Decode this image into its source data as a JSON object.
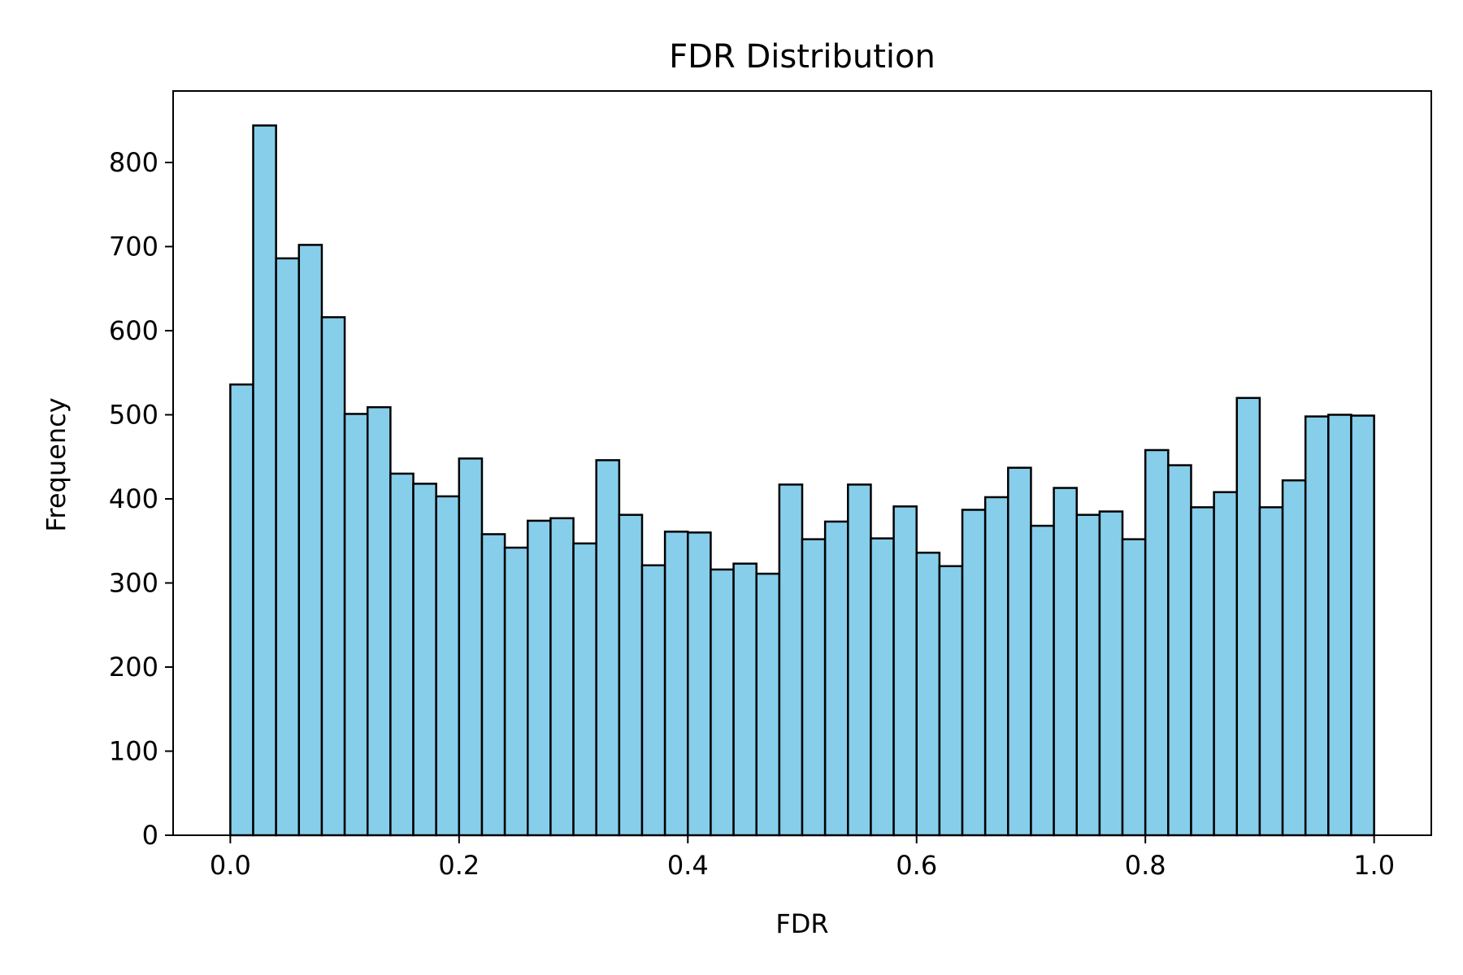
{
  "chart_data": {
    "type": "bar",
    "title": "FDR Distribution",
    "xlabel": "FDR",
    "ylabel": "Frequency",
    "bin_edges_start": 0.0,
    "bin_edges_end": 1.0,
    "xlim": [
      -0.05,
      1.05
    ],
    "ylim": [
      0,
      885
    ],
    "xticks": [
      0.0,
      0.2,
      0.4,
      0.6,
      0.8,
      1.0
    ],
    "xtick_labels": [
      "0.0",
      "0.2",
      "0.4",
      "0.6",
      "0.8",
      "1.0"
    ],
    "yticks": [
      0,
      100,
      200,
      300,
      400,
      500,
      600,
      700,
      800
    ],
    "ytick_labels": [
      "0",
      "100",
      "200",
      "300",
      "400",
      "500",
      "600",
      "700",
      "800"
    ],
    "values": [
      536,
      844,
      686,
      702,
      616,
      501,
      509,
      430,
      418,
      403,
      448,
      358,
      342,
      374,
      377,
      347,
      446,
      381,
      321,
      361,
      360,
      316,
      323,
      311,
      417,
      352,
      373,
      417,
      353,
      391,
      336,
      320,
      387,
      402,
      437,
      368,
      413,
      381,
      385,
      352,
      458,
      440,
      390,
      408,
      520,
      390,
      422,
      498,
      500,
      499
    ],
    "bar_color": "#87ceeb",
    "edge_color": "#000000",
    "grid": false
  }
}
